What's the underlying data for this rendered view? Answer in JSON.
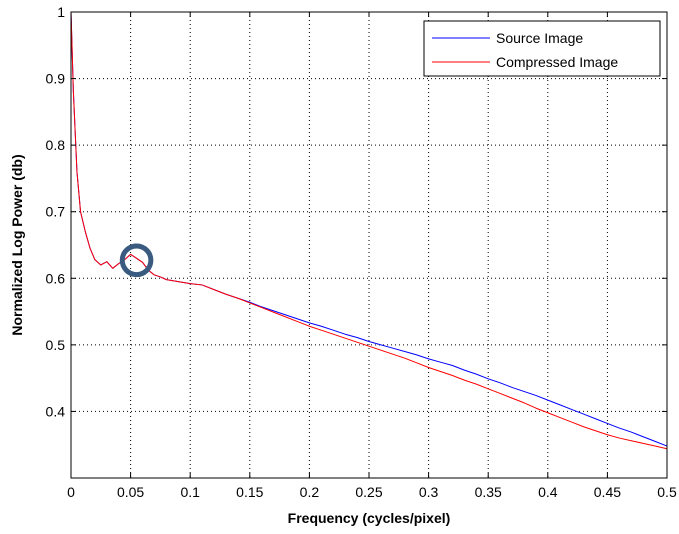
{
  "chart_data": {
    "type": "line",
    "title": "",
    "xlabel": "Frequency (cycles/pixel)",
    "ylabel": "Normalized Log Power (db)",
    "xlim": [
      0,
      0.5
    ],
    "ylim": [
      0.3,
      1.0
    ],
    "xticks": [
      0,
      0.05,
      0.1,
      0.15,
      0.2,
      0.25,
      0.3,
      0.35,
      0.4,
      0.45,
      0.5
    ],
    "xtick_labels": [
      "0",
      "0.05",
      "0.1",
      "0.15",
      "0.2",
      "0.25",
      "0.3",
      "0.35",
      "0.4",
      "0.45",
      "0.5"
    ],
    "yticks": [
      0.4,
      0.5,
      0.6,
      0.7,
      0.8,
      0.9,
      1.0
    ],
    "ytick_labels": [
      "0.4",
      "0.5",
      "0.6",
      "0.7",
      "0.8",
      "0.9",
      "1"
    ],
    "grid": true,
    "legend_position": "top-right",
    "series": [
      {
        "name": "Source Image",
        "color": "#0000ff",
        "x": [
          0,
          0.002,
          0.005,
          0.008,
          0.012,
          0.016,
          0.02,
          0.025,
          0.03,
          0.035,
          0.04,
          0.045,
          0.05,
          0.055,
          0.06,
          0.065,
          0.07,
          0.075,
          0.08,
          0.09,
          0.1,
          0.11,
          0.12,
          0.13,
          0.14,
          0.15,
          0.16,
          0.17,
          0.18,
          0.19,
          0.2,
          0.21,
          0.22,
          0.23,
          0.24,
          0.25,
          0.26,
          0.27,
          0.28,
          0.29,
          0.3,
          0.31,
          0.32,
          0.33,
          0.34,
          0.35,
          0.36,
          0.37,
          0.38,
          0.39,
          0.4,
          0.41,
          0.42,
          0.43,
          0.44,
          0.45,
          0.46,
          0.47,
          0.48,
          0.49,
          0.5
        ],
        "y": [
          1.0,
          0.88,
          0.76,
          0.7,
          0.67,
          0.645,
          0.628,
          0.62,
          0.625,
          0.615,
          0.622,
          0.628,
          0.636,
          0.63,
          0.624,
          0.612,
          0.605,
          0.602,
          0.598,
          0.595,
          0.592,
          0.59,
          0.583,
          0.576,
          0.57,
          0.564,
          0.557,
          0.551,
          0.545,
          0.539,
          0.533,
          0.528,
          0.522,
          0.516,
          0.511,
          0.505,
          0.5,
          0.495,
          0.49,
          0.485,
          0.479,
          0.474,
          0.469,
          0.462,
          0.456,
          0.449,
          0.443,
          0.436,
          0.43,
          0.424,
          0.417,
          0.41,
          0.403,
          0.396,
          0.389,
          0.382,
          0.375,
          0.369,
          0.362,
          0.355,
          0.348
        ]
      },
      {
        "name": "Compressed Image",
        "color": "#ff0000",
        "x": [
          0,
          0.002,
          0.005,
          0.008,
          0.012,
          0.016,
          0.02,
          0.025,
          0.03,
          0.035,
          0.04,
          0.045,
          0.05,
          0.055,
          0.06,
          0.065,
          0.07,
          0.075,
          0.08,
          0.09,
          0.1,
          0.11,
          0.12,
          0.13,
          0.14,
          0.15,
          0.16,
          0.17,
          0.18,
          0.19,
          0.2,
          0.21,
          0.22,
          0.23,
          0.24,
          0.25,
          0.26,
          0.27,
          0.28,
          0.29,
          0.3,
          0.31,
          0.32,
          0.33,
          0.34,
          0.35,
          0.36,
          0.37,
          0.38,
          0.39,
          0.4,
          0.41,
          0.42,
          0.43,
          0.44,
          0.45,
          0.46,
          0.47,
          0.48,
          0.49,
          0.5
        ],
        "y": [
          1.0,
          0.88,
          0.76,
          0.7,
          0.67,
          0.645,
          0.628,
          0.62,
          0.625,
          0.615,
          0.622,
          0.628,
          0.636,
          0.63,
          0.624,
          0.612,
          0.605,
          0.602,
          0.598,
          0.595,
          0.592,
          0.59,
          0.583,
          0.576,
          0.57,
          0.563,
          0.556,
          0.549,
          0.542,
          0.535,
          0.528,
          0.522,
          0.516,
          0.51,
          0.504,
          0.498,
          0.492,
          0.486,
          0.48,
          0.473,
          0.466,
          0.46,
          0.454,
          0.447,
          0.441,
          0.434,
          0.427,
          0.42,
          0.413,
          0.405,
          0.398,
          0.391,
          0.384,
          0.377,
          0.371,
          0.365,
          0.36,
          0.356,
          0.352,
          0.348,
          0.344
        ]
      }
    ],
    "annotations": [
      {
        "type": "circle",
        "color": "#3a5a80",
        "center": [
          0.055,
          0.627
        ],
        "radius_x": 0.012
      }
    ]
  }
}
